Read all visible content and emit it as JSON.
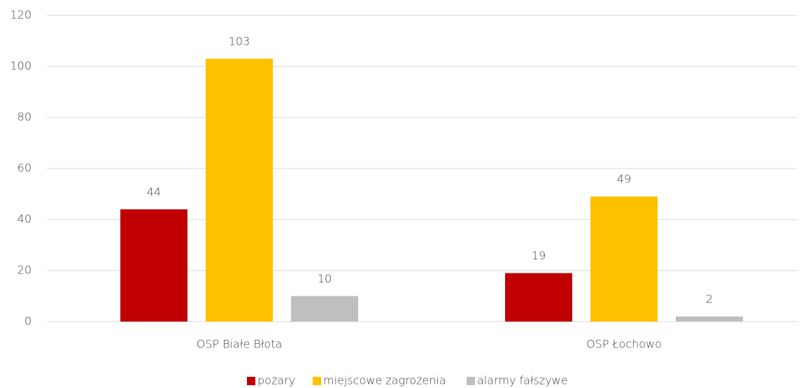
{
  "chart_data": {
    "type": "bar",
    "categories": [
      "OSP Białe Błota",
      "OSP Łochowo"
    ],
    "series": [
      {
        "name": "pożary",
        "color": "#c00000",
        "values": [
          44,
          19
        ]
      },
      {
        "name": "miejscowe zagrożenia",
        "color": "#ffc000",
        "values": [
          103,
          49
        ]
      },
      {
        "name": "alarmy fałszywe",
        "color": "#bfbfbf",
        "values": [
          10,
          2
        ]
      }
    ],
    "ylim": [
      0,
      120
    ],
    "yticks": [
      0,
      20,
      40,
      60,
      80,
      100,
      120
    ],
    "grid": true,
    "legend": "bottom"
  }
}
